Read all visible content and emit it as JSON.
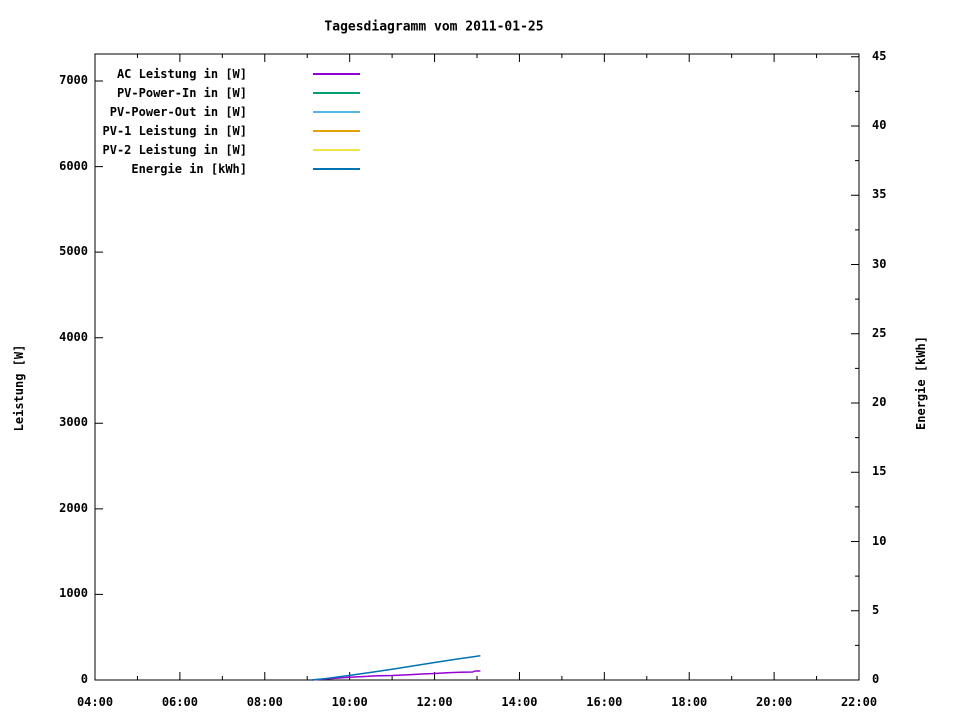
{
  "chart_data": {
    "type": "line",
    "title": "Tagesdiagramm vom 2011-01-25",
    "ylabel": "Leistung [W]",
    "y2label": "Energie [kWh]",
    "background_color": "#ffffff",
    "border_color": "#000000",
    "grid": "off",
    "legend_position": "top-left-inside",
    "x_axis": {
      "start_hour": 4,
      "end_hour": 22,
      "major_tick_hours": [
        4,
        6,
        8,
        10,
        12,
        14,
        16,
        18,
        20,
        22
      ],
      "major_tick_labels": [
        "04:00",
        "06:00",
        "08:00",
        "10:00",
        "12:00",
        "14:00",
        "16:00",
        "18:00",
        "20:00",
        "22:00"
      ],
      "minor_tick_hours": [
        5,
        7,
        9,
        11,
        13,
        15,
        17,
        19,
        21
      ]
    },
    "y_axis": {
      "side": "left",
      "min": 0,
      "max": 7316,
      "tick_values": [
        0,
        1000,
        2000,
        3000,
        4000,
        5000,
        6000,
        7000
      ],
      "tick_labels": [
        "0",
        "1000",
        "2000",
        "3000",
        "4000",
        "5000",
        "6000",
        "7000"
      ]
    },
    "y2_axis": {
      "side": "right",
      "min": 0,
      "max": 45.2,
      "tick_values": [
        0,
        5,
        10,
        15,
        20,
        25,
        30,
        35,
        40,
        45
      ],
      "tick_labels": [
        "0",
        "5",
        "10",
        "15",
        "20",
        "25",
        "30",
        "35",
        "40",
        "45"
      ],
      "minor_tick_values": [
        2.5,
        7.5,
        12.5,
        17.5,
        22.5,
        27.5,
        32.5,
        37.5,
        42.5
      ]
    },
    "series": [
      {
        "name": "AC Leistung in [W]",
        "color": "#9400d3",
        "axis": "y1",
        "points": [
          [
            9.11,
            0
          ],
          [
            9.4,
            10
          ],
          [
            9.7,
            22
          ],
          [
            10.0,
            32
          ],
          [
            10.3,
            40
          ],
          [
            10.6,
            48
          ],
          [
            11.0,
            53
          ],
          [
            11.4,
            62
          ],
          [
            11.7,
            70
          ],
          [
            12.0,
            76
          ],
          [
            12.3,
            84
          ],
          [
            12.6,
            90
          ],
          [
            12.9,
            94
          ],
          [
            12.95,
            105
          ],
          [
            13.08,
            105
          ]
        ]
      },
      {
        "name": "PV-Power-In in [W]",
        "color": "#009e73",
        "axis": "y1",
        "points": []
      },
      {
        "name": "PV-Power-Out in [W]",
        "color": "#56b4e9",
        "axis": "y1",
        "points": []
      },
      {
        "name": "PV-1 Leistung in [W]",
        "color": "#e69f00",
        "axis": "y1",
        "points": []
      },
      {
        "name": "PV-2 Leistung in [W]",
        "color": "#f0e442",
        "axis": "y1",
        "points": []
      },
      {
        "name": "Energie in [kWh]",
        "color": "#0072b2",
        "axis": "y2",
        "points": [
          [
            9.11,
            0
          ],
          [
            9.5,
            0.13
          ],
          [
            10.0,
            0.33
          ],
          [
            10.5,
            0.55
          ],
          [
            11.0,
            0.78
          ],
          [
            11.5,
            1.02
          ],
          [
            12.0,
            1.26
          ],
          [
            12.5,
            1.5
          ],
          [
            13.08,
            1.75
          ]
        ]
      }
    ]
  }
}
